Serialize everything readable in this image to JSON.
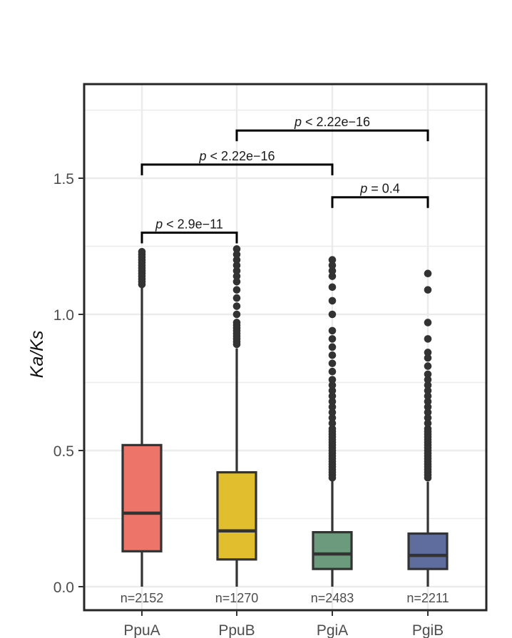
{
  "chart_data": {
    "type": "boxplot",
    "title": "",
    "xlabel": "",
    "ylabel": "Ka/Ks",
    "ylim": [
      -0.08,
      1.84
    ],
    "yticks": [
      0.0,
      0.5,
      1.0,
      1.5
    ],
    "ytick_labels": [
      "0.0",
      "0.5",
      "1.0",
      "1.5"
    ],
    "grid": true,
    "categories": [
      "PpuA",
      "PpuB",
      "PgiA",
      "PgiB"
    ],
    "boxes": [
      {
        "name": "PpuA",
        "color": "#EC7468",
        "count_label": "n=2152",
        "min": 0.0,
        "q1": 0.13,
        "median": 0.27,
        "q3": 0.52,
        "max": 1.1,
        "outliers": [
          1.11,
          1.12,
          1.13,
          1.14,
          1.15,
          1.16,
          1.17,
          1.18,
          1.19,
          1.2,
          1.21,
          1.22,
          1.23
        ]
      },
      {
        "name": "PpuB",
        "color": "#E1BE2E",
        "count_label": "n=1270",
        "min": 0.0,
        "q1": 0.1,
        "median": 0.205,
        "q3": 0.42,
        "max": 0.875,
        "outliers": [
          0.89,
          0.9,
          0.91,
          0.92,
          0.93,
          0.94,
          0.95,
          0.96,
          0.97,
          1.0,
          1.03,
          1.06,
          1.09,
          1.12,
          1.14,
          1.16,
          1.18,
          1.2,
          1.22,
          1.24
        ]
      },
      {
        "name": "PgiA",
        "color": "#6B9A7C",
        "count_label": "n=2483",
        "min": 0.0,
        "q1": 0.065,
        "median": 0.12,
        "q3": 0.2,
        "max": 0.39,
        "outliers": [
          0.4,
          0.41,
          0.42,
          0.43,
          0.44,
          0.45,
          0.46,
          0.47,
          0.48,
          0.49,
          0.5,
          0.51,
          0.52,
          0.53,
          0.54,
          0.55,
          0.56,
          0.57,
          0.58,
          0.6,
          0.62,
          0.64,
          0.66,
          0.68,
          0.7,
          0.72,
          0.74,
          0.76,
          0.79,
          0.82,
          0.85,
          0.88,
          0.91,
          0.94,
          1.0,
          1.05,
          1.1,
          1.14,
          1.16,
          1.18,
          1.2
        ]
      },
      {
        "name": "PgiB",
        "color": "#5E6C9E",
        "count_label": "n=2211",
        "min": 0.0,
        "q1": 0.065,
        "median": 0.115,
        "q3": 0.195,
        "max": 0.385,
        "outliers": [
          0.4,
          0.41,
          0.42,
          0.43,
          0.44,
          0.45,
          0.46,
          0.47,
          0.48,
          0.49,
          0.5,
          0.51,
          0.52,
          0.53,
          0.54,
          0.55,
          0.56,
          0.57,
          0.58,
          0.6,
          0.62,
          0.64,
          0.66,
          0.68,
          0.7,
          0.72,
          0.74,
          0.76,
          0.78,
          0.81,
          0.84,
          0.86,
          0.91,
          0.97,
          1.09,
          1.15
        ]
      }
    ],
    "significance": [
      {
        "from": 0,
        "to": 1,
        "y": 1.3,
        "prefix": "p",
        "label": " < 2.9e−11"
      },
      {
        "from": 0,
        "to": 2,
        "y": 1.55,
        "prefix": "p",
        "label": " < 2.22e−16"
      },
      {
        "from": 1,
        "to": 3,
        "y": 1.675,
        "prefix": "p",
        "label": " < 2.22e−16"
      },
      {
        "from": 2,
        "to": 3,
        "y": 1.43,
        "prefix": "p",
        "label": " = 0.4"
      }
    ]
  }
}
